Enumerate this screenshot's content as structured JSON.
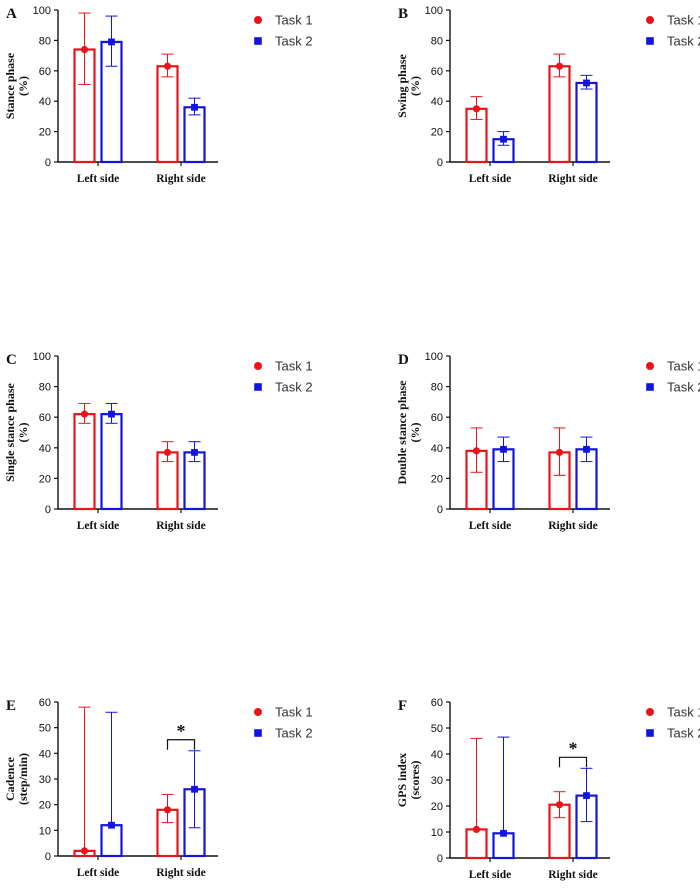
{
  "colors": {
    "task1": "#e8141b",
    "task2": "#1414e0",
    "axis": "#111111"
  },
  "legend": {
    "task1": "Task 1",
    "task2": "Task 2"
  },
  "chart_data": [
    {
      "panel": "A",
      "type": "bar",
      "ylabel_line1": "Stance phase",
      "ylabel_line2": "(%)",
      "categories": [
        "Left side",
        "Right side"
      ],
      "ylim": [
        0,
        100
      ],
      "yticks": [
        0,
        20,
        40,
        60,
        80,
        100
      ],
      "series": [
        {
          "name": "Task 1",
          "values": [
            74,
            63
          ],
          "err_up": [
            24,
            8
          ],
          "err_down": [
            23,
            7
          ]
        },
        {
          "name": "Task 2",
          "values": [
            79,
            36
          ],
          "err_up": [
            17,
            6
          ],
          "err_down": [
            16,
            5
          ]
        }
      ],
      "significance": []
    },
    {
      "panel": "B",
      "type": "bar",
      "ylabel_line1": "Swing phase",
      "ylabel_line2": "(%)",
      "categories": [
        "Left side",
        "Right side"
      ],
      "ylim": [
        0,
        100
      ],
      "yticks": [
        0,
        20,
        40,
        60,
        80,
        100
      ],
      "series": [
        {
          "name": "Task 1",
          "values": [
            35,
            63
          ],
          "err_up": [
            8,
            8
          ],
          "err_down": [
            7,
            7
          ]
        },
        {
          "name": "Task 2",
          "values": [
            15,
            52
          ],
          "err_up": [
            5,
            5
          ],
          "err_down": [
            4,
            4
          ]
        }
      ],
      "significance": []
    },
    {
      "panel": "C",
      "type": "bar",
      "ylabel_line1": "Single stance phase",
      "ylabel_line2": "(%)",
      "categories": [
        "Left side",
        "Right side"
      ],
      "ylim": [
        0,
        100
      ],
      "yticks": [
        0,
        20,
        40,
        60,
        80,
        100
      ],
      "series": [
        {
          "name": "Task 1",
          "values": [
            62,
            37
          ],
          "err_up": [
            7,
            7
          ],
          "err_down": [
            6,
            6
          ]
        },
        {
          "name": "Task 2",
          "values": [
            62,
            37
          ],
          "err_up": [
            7,
            7
          ],
          "err_down": [
            6,
            6
          ]
        }
      ],
      "significance": []
    },
    {
      "panel": "D",
      "type": "bar",
      "ylabel_line1": "Double stance phase",
      "ylabel_line2": "(%)",
      "categories": [
        "Left side",
        "Right side"
      ],
      "ylim": [
        0,
        100
      ],
      "yticks": [
        0,
        20,
        40,
        60,
        80,
        100
      ],
      "series": [
        {
          "name": "Task 1",
          "values": [
            38,
            37
          ],
          "err_up": [
            15,
            16
          ],
          "err_down": [
            14,
            15
          ]
        },
        {
          "name": "Task 2",
          "values": [
            39,
            39
          ],
          "err_up": [
            8,
            8
          ],
          "err_down": [
            8,
            8
          ]
        }
      ],
      "significance": []
    },
    {
      "panel": "E",
      "type": "bar",
      "ylabel_line1": "Cadence",
      "ylabel_line2": "(step/min)",
      "categories": [
        "Left side",
        "Right side"
      ],
      "ylim": [
        0,
        60
      ],
      "yticks": [
        0,
        10,
        20,
        30,
        40,
        50,
        60
      ],
      "series": [
        {
          "name": "Task 1",
          "values": [
            2,
            18
          ],
          "err_up": [
            56,
            6
          ],
          "err_down": [
            2,
            5
          ]
        },
        {
          "name": "Task 2",
          "values": [
            12,
            26
          ],
          "err_up": [
            44,
            15
          ],
          "err_down": [
            0,
            15
          ]
        }
      ],
      "significance": [
        {
          "category": 1,
          "label": "*"
        }
      ]
    },
    {
      "panel": "F",
      "type": "bar",
      "ylabel_line1": "GPS index",
      "ylabel_line2": "(scores)",
      "categories": [
        "Left side",
        "Right side"
      ],
      "ylim": [
        0,
        60
      ],
      "yticks": [
        0,
        10,
        20,
        30,
        40,
        50,
        60
      ],
      "series": [
        {
          "name": "Task 1",
          "values": [
            11,
            20.5
          ],
          "err_up": [
            35,
            5
          ],
          "err_down": [
            0,
            5
          ]
        },
        {
          "name": "Task 2",
          "values": [
            9.5,
            24
          ],
          "err_up": [
            37,
            10.5
          ],
          "err_down": [
            0,
            10
          ]
        }
      ],
      "significance": [
        {
          "category": 1,
          "label": "*"
        }
      ]
    }
  ]
}
